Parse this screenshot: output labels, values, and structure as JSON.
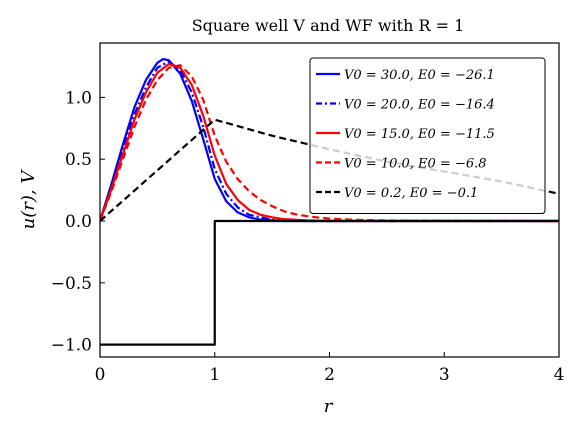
{
  "chart_data": {
    "type": "line",
    "title": "Square well V and WF with R = 1",
    "xlabel": "r",
    "ylabel": "u(r), V",
    "xlim": [
      0,
      4
    ],
    "ylim": [
      -1.1,
      1.44
    ],
    "x_ticks": [
      0,
      1,
      2,
      3,
      4
    ],
    "x_tick_labels": [
      "0",
      "1",
      "2",
      "3",
      "4"
    ],
    "y_ticks": [
      -1.0,
      -0.5,
      0.0,
      0.5,
      1.0
    ],
    "y_tick_labels": [
      "−1.0",
      "−0.5",
      "0.0",
      "0.5",
      "1.0"
    ],
    "grid": false,
    "legend_position": "top-right",
    "series": [
      {
        "name": "V0 = 30.0,  E0 = −26.1",
        "color": "#0000ff",
        "dash": "solid",
        "x": [
          0,
          0.1,
          0.2,
          0.3,
          0.4,
          0.5,
          0.55,
          0.6,
          0.7,
          0.8,
          0.9,
          1.0,
          1.1,
          1.2,
          1.3,
          1.4,
          1.5,
          1.6,
          1.8,
          2.0,
          4.0
        ],
        "y": [
          0,
          0.3,
          0.62,
          0.92,
          1.14,
          1.28,
          1.31,
          1.3,
          1.19,
          0.97,
          0.66,
          0.34,
          0.16,
          0.07,
          0.03,
          0.01,
          0.005,
          0.0,
          0.0,
          0.0,
          0.0
        ]
      },
      {
        "name": "V0 = 20.0,  E0 = −16.4",
        "color": "#0000ff",
        "dash": "dashdot",
        "x": [
          0,
          0.1,
          0.2,
          0.3,
          0.4,
          0.5,
          0.6,
          0.7,
          0.8,
          0.9,
          1.0,
          1.1,
          1.2,
          1.3,
          1.4,
          1.5,
          1.6,
          1.8,
          2.0,
          4.0
        ],
        "y": [
          0,
          0.28,
          0.58,
          0.86,
          1.08,
          1.24,
          1.29,
          1.22,
          1.04,
          0.76,
          0.42,
          0.22,
          0.11,
          0.05,
          0.03,
          0.01,
          0.005,
          0.0,
          0.0,
          0.0
        ]
      },
      {
        "name": "V0 = 15.0,  E0 = −11.5",
        "color": "#ff0000",
        "dash": "solid",
        "x": [
          0,
          0.1,
          0.2,
          0.3,
          0.4,
          0.5,
          0.6,
          0.7,
          0.8,
          0.9,
          1.0,
          1.1,
          1.2,
          1.3,
          1.4,
          1.5,
          1.6,
          1.8,
          2.0,
          4.0
        ],
        "y": [
          0,
          0.26,
          0.54,
          0.82,
          1.04,
          1.2,
          1.27,
          1.24,
          1.1,
          0.85,
          0.53,
          0.3,
          0.17,
          0.09,
          0.05,
          0.03,
          0.015,
          0.005,
          0.0,
          0.0
        ]
      },
      {
        "name": "V0 = 10.0,  E0 = −6.8",
        "color": "#ff0000",
        "dash": "dashed",
        "x": [
          0,
          0.1,
          0.2,
          0.3,
          0.4,
          0.5,
          0.6,
          0.7,
          0.8,
          0.9,
          1.0,
          1.1,
          1.2,
          1.3,
          1.4,
          1.5,
          1.6,
          1.7,
          1.8,
          1.9,
          2.0,
          2.2,
          2.5,
          4.0
        ],
        "y": [
          0,
          0.24,
          0.5,
          0.76,
          0.98,
          1.14,
          1.24,
          1.26,
          1.17,
          0.98,
          0.69,
          0.48,
          0.34,
          0.24,
          0.17,
          0.12,
          0.08,
          0.055,
          0.04,
          0.028,
          0.02,
          0.01,
          0.004,
          0.0
        ]
      },
      {
        "name": "V0 = 0.2,  E0 = −0.1",
        "color": "#000000",
        "dash": "dashed",
        "x": [
          0,
          1.0,
          1.5,
          2.0,
          2.5,
          3.0,
          3.5,
          4.0
        ],
        "y": [
          0,
          0.82,
          0.69,
          0.58,
          0.48,
          0.4,
          0.32,
          0.22
        ]
      },
      {
        "name": "",
        "color": "#000000",
        "dash": "solid",
        "x": [
          0,
          1.0,
          1.0,
          4.0
        ],
        "y": [
          -1.0,
          -1.0,
          0.0,
          0.0
        ]
      }
    ]
  }
}
